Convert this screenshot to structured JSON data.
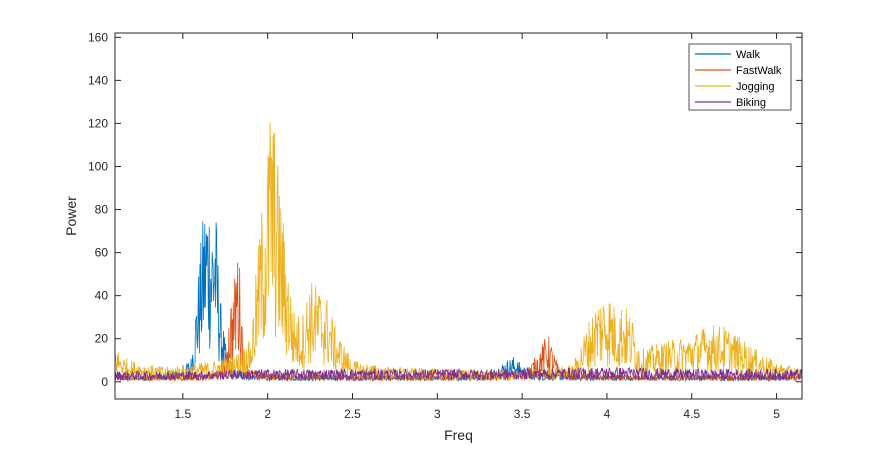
{
  "chart_data": {
    "type": "line",
    "title": "",
    "xlabel": "Freq",
    "ylabel": "Power",
    "xlim": [
      1.1,
      5.15
    ],
    "ylim": [
      -8,
      162
    ],
    "xticks": [
      1.5,
      2,
      2.5,
      3,
      3.5,
      4,
      4.5,
      5
    ],
    "xtick_labels": [
      "1.5",
      "2",
      "2.5",
      "3",
      "3.5",
      "4",
      "4.5",
      "5"
    ],
    "yticks": [
      0,
      20,
      40,
      60,
      80,
      100,
      120,
      140,
      160
    ],
    "ytick_labels": [
      "0",
      "20",
      "40",
      "60",
      "80",
      "100",
      "120",
      "140",
      "160"
    ],
    "grid": false,
    "legend_position": "top-right",
    "series": [
      {
        "name": "Walk",
        "color": "#0072BD",
        "x": [
          1.1,
          1.2,
          1.3,
          1.4,
          1.5,
          1.55,
          1.6,
          1.63,
          1.65,
          1.67,
          1.69,
          1.72,
          1.75,
          1.8,
          1.9,
          2.0,
          2.2,
          2.5,
          3.0,
          3.3,
          3.4,
          3.45,
          3.5,
          3.6,
          4.0,
          4.5,
          5.15
        ],
        "y": [
          3,
          3,
          3,
          4,
          6,
          12,
          60,
          87,
          93,
          80,
          88,
          40,
          18,
          6,
          4,
          3,
          3,
          3,
          3,
          4,
          10,
          12,
          8,
          4,
          3,
          3,
          3
        ]
      },
      {
        "name": "FastWalk",
        "color": "#D95319",
        "x": [
          1.1,
          1.5,
          1.7,
          1.75,
          1.78,
          1.8,
          1.82,
          1.84,
          1.86,
          1.9,
          2.0,
          2.5,
          3.0,
          3.5,
          3.58,
          3.62,
          3.65,
          3.68,
          3.72,
          3.8,
          4.0,
          4.5,
          5.15
        ],
        "y": [
          3,
          3,
          4,
          12,
          40,
          42,
          67,
          51,
          12,
          6,
          4,
          3,
          3,
          4,
          12,
          18,
          23,
          16,
          6,
          4,
          3,
          3,
          3
        ]
      },
      {
        "name": "Jogging",
        "color": "#EDB120",
        "x": [
          1.1,
          1.15,
          1.2,
          1.3,
          1.4,
          1.5,
          1.6,
          1.7,
          1.8,
          1.9,
          1.95,
          2.0,
          2.02,
          2.05,
          2.1,
          2.15,
          2.2,
          2.25,
          2.3,
          2.35,
          2.4,
          2.5,
          2.7,
          3.0,
          3.5,
          3.8,
          3.9,
          3.95,
          4.0,
          4.05,
          4.1,
          4.15,
          4.2,
          4.3,
          4.4,
          4.5,
          4.6,
          4.7,
          4.8,
          4.9,
          5.0,
          5.15
        ],
        "y": [
          17,
          12,
          10,
          8,
          7,
          8,
          9,
          10,
          12,
          20,
          70,
          110,
          140,
          112,
          70,
          35,
          30,
          48,
          45,
          40,
          25,
          10,
          7,
          6,
          5,
          8,
          30,
          40,
          44,
          35,
          37,
          30,
          15,
          18,
          20,
          22,
          27,
          26,
          20,
          14,
          9,
          6
        ]
      },
      {
        "name": "Biking",
        "color": "#7E2F8E",
        "x": [
          1.1,
          1.5,
          2.0,
          2.5,
          3.0,
          3.5,
          4.0,
          4.5,
          5.0,
          5.15
        ],
        "y": [
          5,
          5,
          6,
          6,
          6,
          6,
          7,
          6,
          6,
          6
        ]
      }
    ]
  }
}
